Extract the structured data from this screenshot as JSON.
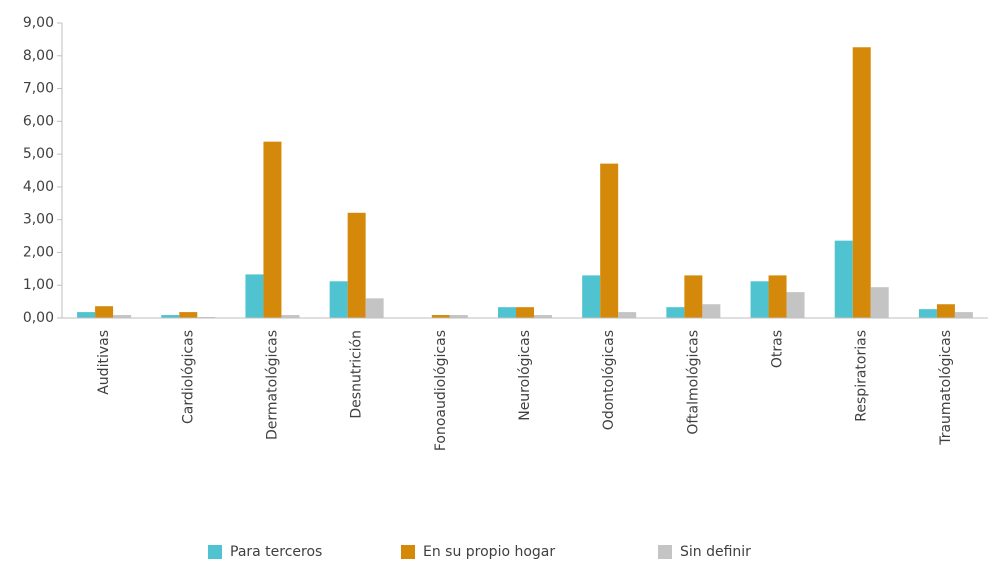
{
  "chart_data": {
    "type": "bar",
    "categories": [
      "Auditivas",
      "Cardiológicas",
      "Dermatológicas",
      "Desnutrición",
      "Fonoaudiológicas",
      "Neurológicas",
      "Odontológicas",
      "Oftalmológicas",
      "Otras",
      "Respiratorias",
      "Traumatológicas"
    ],
    "series": [
      {
        "name": "Para terceros",
        "color": "#4fc4d0",
        "values": [
          0.18,
          0.09,
          1.33,
          1.12,
          0,
          0.33,
          1.3,
          0.33,
          1.12,
          2.36,
          0.27
        ]
      },
      {
        "name": "En su propio hogar",
        "color": "#d4890a",
        "values": [
          0.36,
          0.18,
          5.38,
          3.21,
          0.09,
          0.33,
          4.71,
          1.3,
          1.3,
          8.26,
          0.42
        ]
      },
      {
        "name": "Sin definir",
        "color": "#c4c4c4",
        "values": [
          0.09,
          0.03,
          0.09,
          0.6,
          0.09,
          0.09,
          0.18,
          0.42,
          0.79,
          0.94,
          0.18
        ]
      }
    ],
    "ylim": [
      0,
      9
    ],
    "yticks": [
      {
        "value": 0,
        "label": "0,00"
      },
      {
        "value": 1,
        "label": "1,00"
      },
      {
        "value": 2,
        "label": "2,00"
      },
      {
        "value": 3,
        "label": "3,00"
      },
      {
        "value": 4,
        "label": "4,00"
      },
      {
        "value": 5,
        "label": "5,00"
      },
      {
        "value": 6,
        "label": "6,00"
      },
      {
        "value": 7,
        "label": "7,00"
      },
      {
        "value": 8,
        "label": "8,00"
      },
      {
        "value": 9,
        "label": "9,00"
      }
    ],
    "legend": "bottom"
  }
}
